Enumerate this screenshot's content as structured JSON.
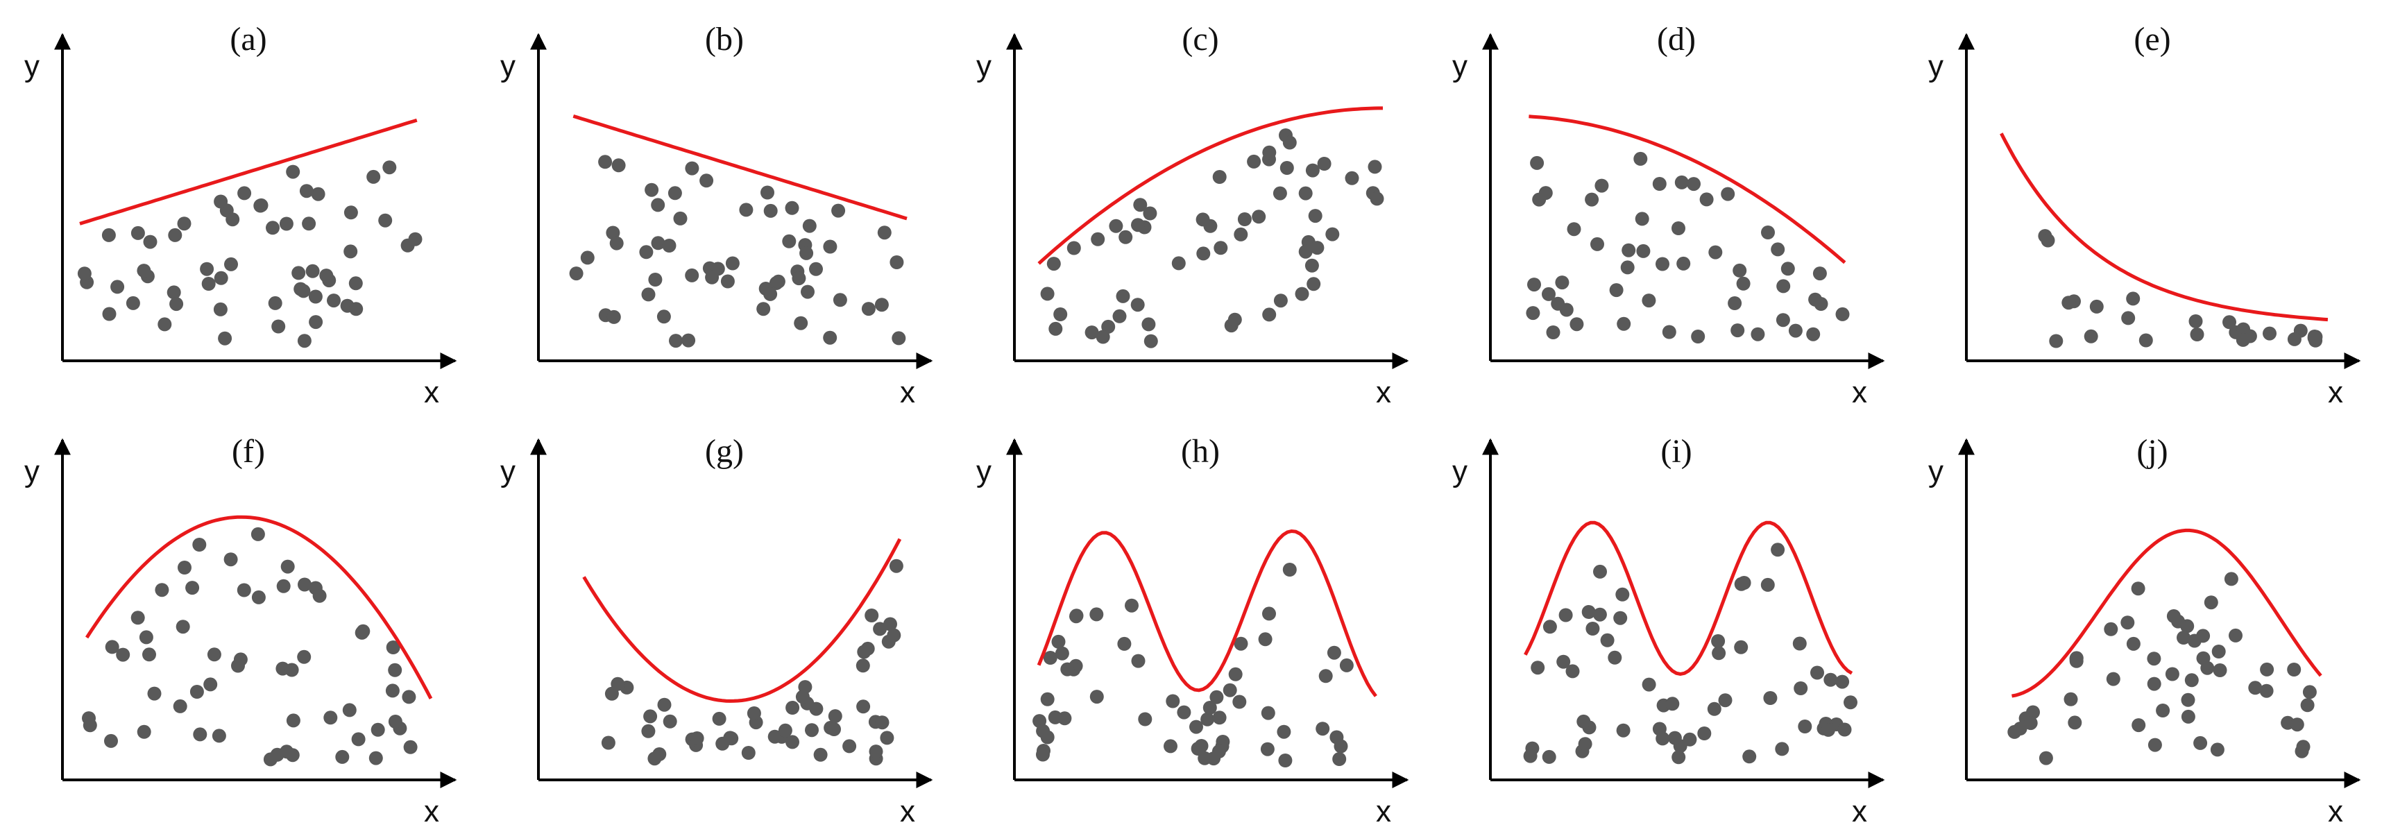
{
  "colors": {
    "axis": "#000000",
    "points": "#595959",
    "boundary": "#e8191b",
    "background": "#ffffff"
  },
  "axis_labels": {
    "x": "x",
    "y": "y"
  },
  "panels": [
    {
      "label": "(a)",
      "boundary": "increasing-line",
      "approx_points": 55
    },
    {
      "label": "(b)",
      "boundary": "decreasing-line",
      "approx_points": 55
    },
    {
      "label": "(c)",
      "boundary": "concave-increasing",
      "approx_points": 55
    },
    {
      "label": "(d)",
      "boundary": "concave-decreasing",
      "approx_points": 50
    },
    {
      "label": "(e)",
      "boundary": "convex-decreasing",
      "approx_points": 25
    },
    {
      "label": "(f)",
      "boundary": "inverted-u",
      "approx_points": 55
    },
    {
      "label": "(g)",
      "boundary": "u-shape",
      "approx_points": 50
    },
    {
      "label": "(h)",
      "boundary": "two-peaks",
      "approx_points": 55
    },
    {
      "label": "(i)",
      "boundary": "two-valleys",
      "approx_points": 55
    },
    {
      "label": "(j)",
      "boundary": "valley-then-peak",
      "approx_points": 50
    }
  ]
}
